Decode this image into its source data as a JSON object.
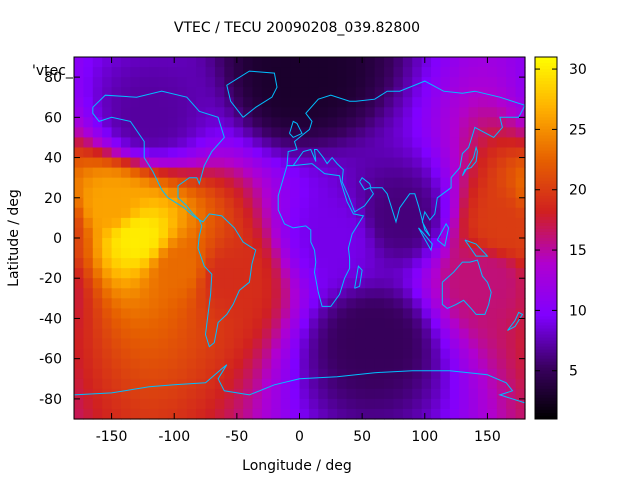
{
  "chart_data": {
    "type": "heatmap",
    "title": "VTEC / TECU 20090208_039.82800",
    "xlabel": "Longitude / deg",
    "ylabel": "Latitude / deg",
    "xlim": [
      -180,
      180
    ],
    "ylim": [
      -90,
      90
    ],
    "xticks": [
      -150,
      -100,
      -50,
      0,
      50,
      100,
      150
    ],
    "yticks": [
      -80,
      -60,
      -40,
      -20,
      0,
      20,
      40,
      60,
      80
    ],
    "colorbar": {
      "range": [
        1,
        31
      ],
      "ticks": [
        5,
        10,
        15,
        20,
        25,
        30
      ],
      "palette": [
        "#000000",
        "#3a0060",
        "#8000ff",
        "#b000d0",
        "#d02020",
        "#e66000",
        "#ffb000",
        "#ffff00"
      ]
    },
    "series_label": "'vtec_",
    "grid": false,
    "regions": [
      {
        "lon": -130,
        "lat": 0,
        "value": 30,
        "description_value": "peak"
      },
      {
        "lon": -150,
        "lat": 15,
        "value": 26
      },
      {
        "lon": -95,
        "lat": -15,
        "value": 23
      },
      {
        "lon": -60,
        "lat": -20,
        "value": 19
      },
      {
        "lon": 165,
        "lat": 5,
        "value": 20
      },
      {
        "lon": 150,
        "lat": -20,
        "value": 16
      },
      {
        "lon": 30,
        "lat": 0,
        "value": 9
      },
      {
        "lon": 80,
        "lat": 10,
        "value": 6
      },
      {
        "lon": 0,
        "lat": 80,
        "value": 3
      },
      {
        "lon": 60,
        "lat": -50,
        "value": 5
      },
      {
        "lon": -120,
        "lat": 60,
        "value": 7
      }
    ],
    "continent_color": "#00bfff"
  }
}
